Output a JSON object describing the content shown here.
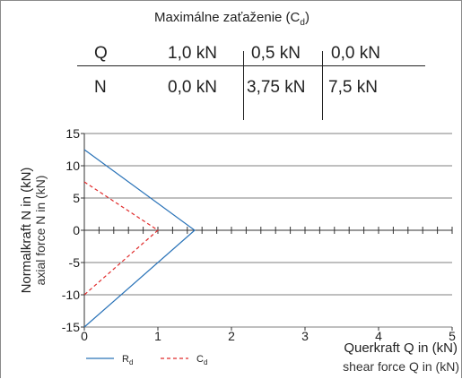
{
  "load_table": {
    "title": "Maximálne zaťaženie (C",
    "title_sub": "d",
    "title_close": ")",
    "rows": [
      {
        "label": "Q",
        "values": [
          "1,0 kN",
          "0,5 kN",
          "0,0 kN"
        ]
      },
      {
        "label": "N",
        "values": [
          "0,0 kN",
          "3,75 kN",
          "7,5 kN"
        ]
      }
    ]
  },
  "chart_data": {
    "type": "line",
    "xlim": [
      0,
      5
    ],
    "ylim": [
      -15,
      15
    ],
    "x_ticks": [
      "0",
      "1",
      "2",
      "3",
      "4",
      "5"
    ],
    "y_ticks": [
      "15",
      "10",
      "5",
      "0",
      "-5",
      "-10",
      "-15"
    ],
    "grid": true,
    "xlabel": "Querkraft Q in (kN)",
    "xlabel_sub": "shear force Q in (kN)",
    "ylabel": "Normalkraft N in (kN)",
    "ylabel_sub": "axial force N in (kN)",
    "legend_position": "bottom-left",
    "series": [
      {
        "name": "R",
        "name_sub": "d",
        "color": "#2a73b8",
        "style": "solid",
        "points": [
          [
            0,
            12.5
          ],
          [
            1.5,
            0
          ],
          [
            0,
            -15
          ]
        ]
      },
      {
        "name": "C",
        "name_sub": "d",
        "color": "#e02a2a",
        "style": "dashed",
        "points": [
          [
            0,
            7.5
          ],
          [
            1,
            0
          ],
          [
            0,
            -10
          ]
        ]
      }
    ]
  }
}
